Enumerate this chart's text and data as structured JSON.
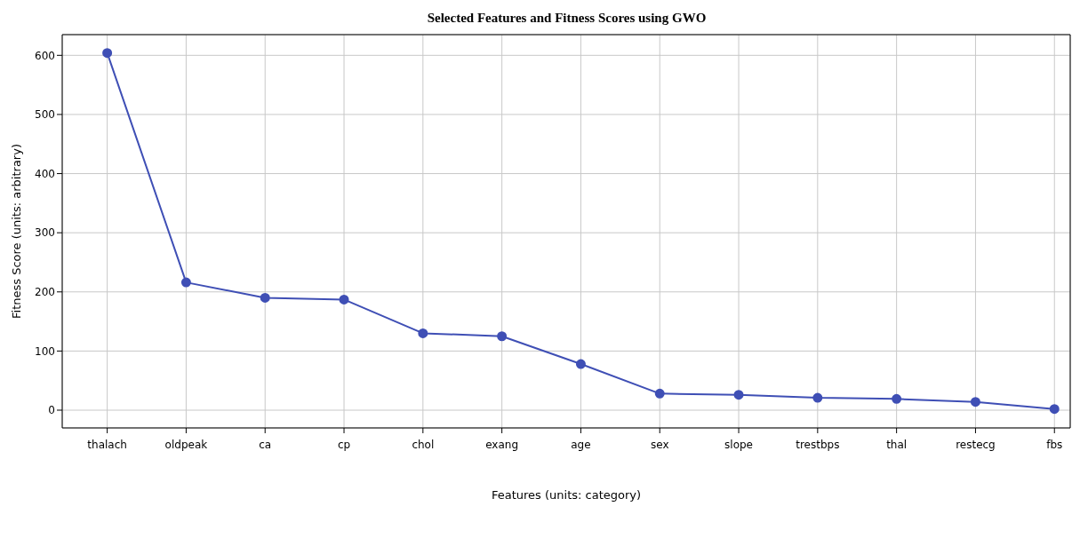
{
  "chart_data": {
    "type": "line",
    "title": "Selected Features and Fitness Scores using GWO",
    "xlabel": "Features (units: category)",
    "ylabel": "Fitness Score (units: arbitrary)",
    "categories": [
      "thalach",
      "oldpeak",
      "ca",
      "cp",
      "chol",
      "exang",
      "age",
      "sex",
      "slope",
      "trestbps",
      "thal",
      "restecg",
      "fbs"
    ],
    "series": [
      {
        "color": "#3f4fb5",
        "values": [
          604,
          216,
          190,
          187,
          130,
          125,
          78,
          28,
          26,
          21,
          19,
          14,
          2
        ]
      }
    ],
    "ylim": [
      -30,
      635
    ],
    "yticks": [
      0,
      100,
      200,
      300,
      400,
      500,
      600
    ],
    "grid": true,
    "marker": "circle",
    "line_style": "solid"
  }
}
